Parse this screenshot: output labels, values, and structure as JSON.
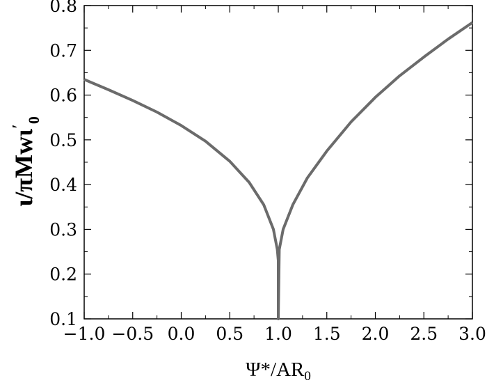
{
  "chart_data": {
    "type": "line",
    "title": "",
    "xlabel": {
      "main": "Ψ*/AR",
      "sub": "0"
    },
    "ylabel": {
      "main": "ι/πMwι",
      "sup": "′",
      "sub": "0"
    },
    "xlim": [
      -1.0,
      3.0
    ],
    "ylim": [
      0.1,
      0.8
    ],
    "xticks": [
      -1.0,
      -0.5,
      0.0,
      0.5,
      1.0,
      1.5,
      2.0,
      2.5,
      3.0
    ],
    "xtick_labels": [
      "−1.0",
      "−0.5",
      "0.0",
      "0.5",
      "1.0",
      "1.5",
      "2.0",
      "2.5",
      "3.0"
    ],
    "yticks": [
      0.1,
      0.2,
      0.3,
      0.4,
      0.5,
      0.6,
      0.7,
      0.8
    ],
    "ytick_labels": [
      "0.1",
      "0.2",
      "0.3",
      "0.4",
      "0.5",
      "0.6",
      "0.7",
      "0.8"
    ],
    "grid": false,
    "line_color": "#6b6b6b",
    "series": [
      {
        "x": [
          -1.0,
          -0.75,
          -0.5,
          -0.25,
          0.0,
          0.25,
          0.5,
          0.7,
          0.85,
          0.95,
          0.99,
          1.0,
          1.0,
          1.01,
          1.05,
          1.15,
          1.3,
          1.5,
          1.75,
          2.0,
          2.25,
          2.5,
          2.75,
          3.0
        ],
        "y": [
          0.635,
          0.612,
          0.588,
          0.562,
          0.532,
          0.497,
          0.452,
          0.405,
          0.355,
          0.3,
          0.255,
          0.23,
          0.1,
          0.255,
          0.3,
          0.355,
          0.415,
          0.475,
          0.54,
          0.595,
          0.643,
          0.685,
          0.725,
          0.762
        ]
      }
    ]
  }
}
